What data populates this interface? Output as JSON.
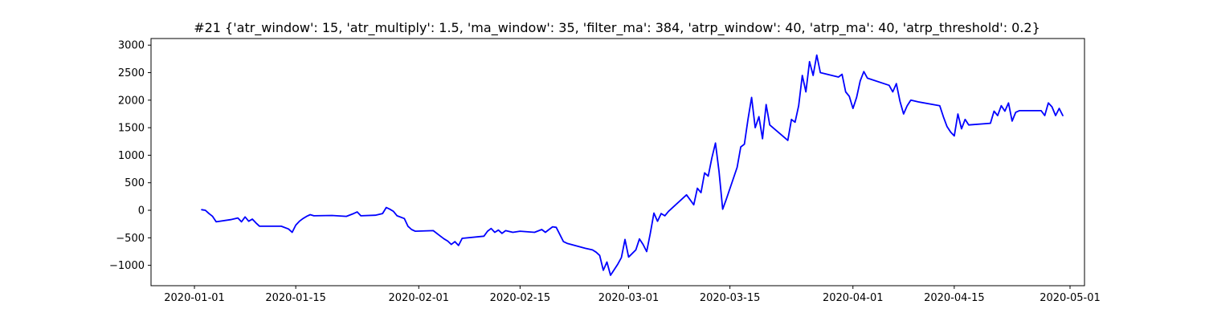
{
  "chart_data": {
    "type": "line",
    "title": "#21 {'atr_window': 15, 'atr_multiply': 1.5, 'ma_window': 35, 'filter_ma': 384, 'atrp_window': 40, 'atrp_ma': 40, 'atrp_threshold': 0.2}",
    "xlabel": "",
    "ylabel": "",
    "x_axis": "date",
    "xlim": [
      "2019-12-26",
      "2020-05-03"
    ],
    "ylim": [
      -1370,
      3120
    ],
    "grid": false,
    "legend": "none",
    "xticks": [
      {
        "date": "2020-01-01",
        "label": "2020-01-01"
      },
      {
        "date": "2020-01-15",
        "label": "2020-01-15"
      },
      {
        "date": "2020-02-01",
        "label": "2020-02-01"
      },
      {
        "date": "2020-02-15",
        "label": "2020-02-15"
      },
      {
        "date": "2020-03-01",
        "label": "2020-03-01"
      },
      {
        "date": "2020-03-15",
        "label": "2020-03-15"
      },
      {
        "date": "2020-04-01",
        "label": "2020-04-01"
      },
      {
        "date": "2020-04-15",
        "label": "2020-04-15"
      },
      {
        "date": "2020-05-01",
        "label": "2020-05-01"
      }
    ],
    "yticks": [
      {
        "value": 3000,
        "label": "3000"
      },
      {
        "value": 2500,
        "label": "2500"
      },
      {
        "value": 2000,
        "label": "2000"
      },
      {
        "value": 1500,
        "label": "1500"
      },
      {
        "value": 1000,
        "label": "1000"
      },
      {
        "value": 500,
        "label": "500"
      },
      {
        "value": 0,
        "label": "0"
      },
      {
        "value": -500,
        "label": "−500"
      },
      {
        "value": -1000,
        "label": "−1000"
      }
    ],
    "series": [
      {
        "color": "#0000ff",
        "points": [
          [
            "2020-01-02",
            10
          ],
          [
            "2020-01-02 12:00",
            0
          ],
          [
            "2020-01-03",
            -60
          ],
          [
            "2020-01-03 12:00",
            -110
          ],
          [
            "2020-01-04",
            -210
          ],
          [
            "2020-01-06",
            -170
          ],
          [
            "2020-01-07",
            -140
          ],
          [
            "2020-01-07 12:00",
            -210
          ],
          [
            "2020-01-08",
            -120
          ],
          [
            "2020-01-08 12:00",
            -200
          ],
          [
            "2020-01-09",
            -160
          ],
          [
            "2020-01-09 12:00",
            -230
          ],
          [
            "2020-01-10",
            -290
          ],
          [
            "2020-01-13",
            -290
          ],
          [
            "2020-01-14",
            -340
          ],
          [
            "2020-01-14 12:00",
            -400
          ],
          [
            "2020-01-15",
            -270
          ],
          [
            "2020-01-15 12:00",
            -200
          ],
          [
            "2020-01-16",
            -150
          ],
          [
            "2020-01-16 12:00",
            -110
          ],
          [
            "2020-01-17",
            -80
          ],
          [
            "2020-01-17 12:00",
            -100
          ],
          [
            "2020-01-20",
            -95
          ],
          [
            "2020-01-22",
            -110
          ],
          [
            "2020-01-23",
            -60
          ],
          [
            "2020-01-23 12:00",
            -30
          ],
          [
            "2020-01-24",
            -100
          ],
          [
            "2020-01-26",
            -90
          ],
          [
            "2020-01-27",
            -60
          ],
          [
            "2020-01-27 12:00",
            50
          ],
          [
            "2020-01-28",
            20
          ],
          [
            "2020-01-28 12:00",
            -20
          ],
          [
            "2020-01-29",
            -100
          ],
          [
            "2020-01-30",
            -150
          ],
          [
            "2020-01-30 12:00",
            -290
          ],
          [
            "2020-01-31",
            -350
          ],
          [
            "2020-01-31 12:00",
            -380
          ],
          [
            "2020-02-03",
            -370
          ],
          [
            "2020-02-04",
            -470
          ],
          [
            "2020-02-04 12:00",
            -520
          ],
          [
            "2020-02-05",
            -560
          ],
          [
            "2020-02-05 12:00",
            -620
          ],
          [
            "2020-02-06",
            -570
          ],
          [
            "2020-02-06 12:00",
            -640
          ],
          [
            "2020-02-07",
            -510
          ],
          [
            "2020-02-10",
            -470
          ],
          [
            "2020-02-10 12:00",
            -380
          ],
          [
            "2020-02-11",
            -330
          ],
          [
            "2020-02-11 12:00",
            -400
          ],
          [
            "2020-02-12",
            -360
          ],
          [
            "2020-02-12 12:00",
            -420
          ],
          [
            "2020-02-13",
            -370
          ],
          [
            "2020-02-14",
            -400
          ],
          [
            "2020-02-15",
            -380
          ],
          [
            "2020-02-17",
            -400
          ],
          [
            "2020-02-18",
            -350
          ],
          [
            "2020-02-18 12:00",
            -400
          ],
          [
            "2020-02-19",
            -350
          ],
          [
            "2020-02-19 12:00",
            -300
          ],
          [
            "2020-02-20",
            -310
          ],
          [
            "2020-02-20 12:00",
            -440
          ],
          [
            "2020-02-21",
            -570
          ],
          [
            "2020-02-21 12:00",
            -600
          ],
          [
            "2020-02-24",
            -690
          ],
          [
            "2020-02-25",
            -720
          ],
          [
            "2020-02-25 12:00",
            -760
          ],
          [
            "2020-02-26",
            -820
          ],
          [
            "2020-02-26 12:00",
            -1090
          ],
          [
            "2020-02-27",
            -940
          ],
          [
            "2020-02-27 12:00",
            -1180
          ],
          [
            "2020-02-28",
            -1080
          ],
          [
            "2020-02-28 12:00",
            -980
          ],
          [
            "2020-02-29",
            -860
          ],
          [
            "2020-02-29 12:00",
            -530
          ],
          [
            "2020-03-01",
            -850
          ],
          [
            "2020-03-02",
            -720
          ],
          [
            "2020-03-02 12:00",
            -520
          ],
          [
            "2020-03-03",
            -620
          ],
          [
            "2020-03-03 12:00",
            -750
          ],
          [
            "2020-03-04",
            -420
          ],
          [
            "2020-03-04 12:00",
            -50
          ],
          [
            "2020-03-05",
            -200
          ],
          [
            "2020-03-05 12:00",
            -60
          ],
          [
            "2020-03-06",
            -100
          ],
          [
            "2020-03-06 12:00",
            -20
          ],
          [
            "2020-03-09",
            280
          ],
          [
            "2020-03-10",
            100
          ],
          [
            "2020-03-10 12:00",
            400
          ],
          [
            "2020-03-11",
            320
          ],
          [
            "2020-03-11 12:00",
            680
          ],
          [
            "2020-03-12",
            620
          ],
          [
            "2020-03-12 12:00",
            950
          ],
          [
            "2020-03-13",
            1220
          ],
          [
            "2020-03-13 12:00",
            700
          ],
          [
            "2020-03-14",
            20
          ],
          [
            "2020-03-14 12:00",
            200
          ],
          [
            "2020-03-16",
            780
          ],
          [
            "2020-03-16 12:00",
            1150
          ],
          [
            "2020-03-17",
            1200
          ],
          [
            "2020-03-17 12:00",
            1650
          ],
          [
            "2020-03-18",
            2050
          ],
          [
            "2020-03-18 12:00",
            1500
          ],
          [
            "2020-03-19",
            1700
          ],
          [
            "2020-03-19 12:00",
            1300
          ],
          [
            "2020-03-20",
            1920
          ],
          [
            "2020-03-20 12:00",
            1550
          ],
          [
            "2020-03-23",
            1270
          ],
          [
            "2020-03-23 12:00",
            1650
          ],
          [
            "2020-03-24",
            1600
          ],
          [
            "2020-03-24 12:00",
            1900
          ],
          [
            "2020-03-25",
            2450
          ],
          [
            "2020-03-25 12:00",
            2150
          ],
          [
            "2020-03-26",
            2700
          ],
          [
            "2020-03-26 12:00",
            2450
          ],
          [
            "2020-03-27",
            2820
          ],
          [
            "2020-03-27 12:00",
            2500
          ],
          [
            "2020-03-30",
            2420
          ],
          [
            "2020-03-30 12:00",
            2470
          ],
          [
            "2020-03-31",
            2150
          ],
          [
            "2020-03-31 12:00",
            2070
          ],
          [
            "2020-04-01",
            1850
          ],
          [
            "2020-04-01 12:00",
            2050
          ],
          [
            "2020-04-02",
            2350
          ],
          [
            "2020-04-02 12:00",
            2520
          ],
          [
            "2020-04-03",
            2400
          ],
          [
            "2020-04-06",
            2270
          ],
          [
            "2020-04-06 12:00",
            2150
          ],
          [
            "2020-04-07",
            2300
          ],
          [
            "2020-04-07 12:00",
            1980
          ],
          [
            "2020-04-08",
            1750
          ],
          [
            "2020-04-08 12:00",
            1900
          ],
          [
            "2020-04-09",
            2000
          ],
          [
            "2020-04-10",
            1970
          ],
          [
            "2020-04-13",
            1900
          ],
          [
            "2020-04-13 12:00",
            1700
          ],
          [
            "2020-04-14",
            1520
          ],
          [
            "2020-04-14 12:00",
            1420
          ],
          [
            "2020-04-15",
            1350
          ],
          [
            "2020-04-15 12:00",
            1750
          ],
          [
            "2020-04-16",
            1480
          ],
          [
            "2020-04-16 12:00",
            1650
          ],
          [
            "2020-04-17",
            1550
          ],
          [
            "2020-04-20",
            1580
          ],
          [
            "2020-04-20 12:00",
            1800
          ],
          [
            "2020-04-21",
            1720
          ],
          [
            "2020-04-21 12:00",
            1900
          ],
          [
            "2020-04-22",
            1800
          ],
          [
            "2020-04-22 12:00",
            1950
          ],
          [
            "2020-04-23",
            1620
          ],
          [
            "2020-04-23 12:00",
            1780
          ],
          [
            "2020-04-24",
            1810
          ],
          [
            "2020-04-27",
            1810
          ],
          [
            "2020-04-27 12:00",
            1720
          ],
          [
            "2020-04-28",
            1950
          ],
          [
            "2020-04-28 12:00",
            1880
          ],
          [
            "2020-04-29",
            1720
          ],
          [
            "2020-04-29 12:00",
            1850
          ],
          [
            "2020-04-30",
            1720
          ]
        ]
      }
    ]
  }
}
